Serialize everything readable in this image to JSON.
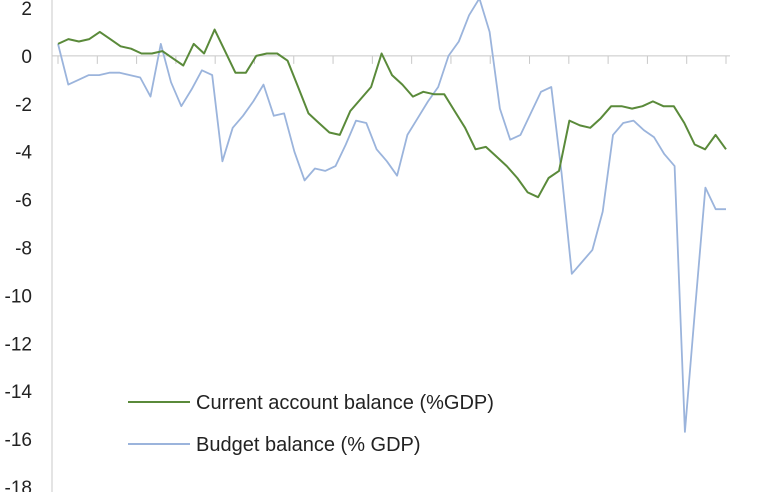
{
  "chart_data": {
    "type": "line",
    "title": "",
    "xlabel": "",
    "ylabel": "",
    "ylim": [
      -18,
      2
    ],
    "yticks": [
      2,
      0,
      -2,
      -4,
      -6,
      -8,
      -10,
      -12,
      -14,
      -16,
      -18
    ],
    "grid": false,
    "legend_position": "bottom-left",
    "series": [
      {
        "name": "Current account balance (%GDP)",
        "color": "#5a8a3a",
        "values": [
          0.5,
          0.7,
          0.6,
          0.7,
          1.0,
          0.7,
          0.4,
          0.3,
          0.1,
          0.1,
          0.2,
          -0.1,
          -0.4,
          0.5,
          0.1,
          1.1,
          0.2,
          -0.7,
          -0.7,
          0.0,
          0.1,
          0.1,
          -0.2,
          -1.3,
          -2.4,
          -2.8,
          -3.2,
          -3.3,
          -2.3,
          -1.8,
          -1.3,
          0.1,
          -0.8,
          -1.2,
          -1.7,
          -1.5,
          -1.6,
          -1.6,
          -2.3,
          -3.0,
          -3.9,
          -3.8,
          -4.2,
          -4.6,
          -5.1,
          -5.7,
          -5.9,
          -5.1,
          -4.8,
          -2.7,
          -2.9,
          -3.0,
          -2.6,
          -2.1,
          -2.1,
          -2.2,
          -2.1,
          -1.9,
          -2.1,
          -2.1,
          -2.8,
          -3.7,
          -3.9,
          -3.3,
          -3.9
        ]
      },
      {
        "name": "Budget balance (% GDP)",
        "color": "#9bb4dc",
        "values": [
          0.5,
          -1.2,
          -1.0,
          -0.8,
          -0.8,
          -0.7,
          -0.7,
          -0.8,
          -0.9,
          -1.7,
          0.5,
          -1.1,
          -2.1,
          -1.4,
          -0.6,
          -0.8,
          -4.4,
          -3.0,
          -2.5,
          -1.9,
          -1.2,
          -2.5,
          -2.4,
          -4.0,
          -5.2,
          -4.7,
          -4.8,
          -4.6,
          -3.7,
          -2.7,
          -2.8,
          -3.9,
          -4.4,
          -5.0,
          -3.3,
          -2.6,
          -1.9,
          -1.3,
          0.0,
          0.6,
          1.7,
          2.4,
          1.0,
          -2.2,
          -3.5,
          -3.3,
          -2.4,
          -1.5,
          -1.3,
          -4.9,
          -9.1,
          -8.6,
          -8.1,
          -6.5,
          -3.3,
          -2.8,
          -2.7,
          -3.1,
          -3.4,
          -4.1,
          -4.6,
          -15.7,
          -10.5,
          -5.5,
          -6.4,
          -6.4
        ]
      }
    ]
  }
}
